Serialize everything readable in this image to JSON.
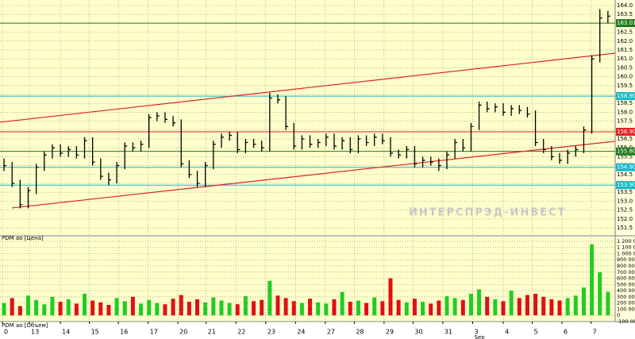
{
  "chart_data": [
    {
      "type": "ohlc",
      "title": "PDM ao [Цена]",
      "xlim": [
        -0.5,
        75.9
      ],
      "ylim": [
        151.1,
        164.31
      ],
      "yticks": [
        {
          "value": 164,
          "label": "164.0"
        },
        {
          "value": 163.5,
          "label": "163.5"
        },
        {
          "value": 163,
          "label": "163.0"
        },
        {
          "value": 162.5,
          "label": "162.5"
        },
        {
          "value": 162,
          "label": "162.0"
        },
        {
          "value": 161.5,
          "label": "161.5"
        },
        {
          "value": 161,
          "label": "161.0"
        },
        {
          "value": 160.5,
          "label": "160.5"
        },
        {
          "value": 160,
          "label": "160.0"
        },
        {
          "value": 159.5,
          "label": "159.5"
        },
        {
          "value": 159,
          "label": "159.0"
        },
        {
          "value": 158.5,
          "label": "158.5"
        },
        {
          "value": 158,
          "label": "158.0"
        },
        {
          "value": 157.5,
          "label": "157.5"
        },
        {
          "value": 157,
          "label": "157.0"
        },
        {
          "value": 156.5,
          "label": "156.5"
        },
        {
          "value": 156,
          "label": "156.0"
        },
        {
          "value": 155.5,
          "label": "155.5"
        },
        {
          "value": 155,
          "label": "155.0"
        },
        {
          "value": 154.5,
          "label": "154.5"
        },
        {
          "value": 154,
          "label": "154.0"
        },
        {
          "value": 153.5,
          "label": "153.5"
        },
        {
          "value": 153,
          "label": "153.0"
        },
        {
          "value": 152.5,
          "label": "152.5"
        },
        {
          "value": 152,
          "label": "152.0"
        },
        {
          "value": 151.5,
          "label": "151.5"
        }
      ],
      "grid": true,
      "color": "#000000",
      "high": [
        155.4,
        155.2,
        154.2,
        153.8,
        155.1,
        155.8,
        156.2,
        156.2,
        156.1,
        156.1,
        156.6,
        156.6,
        155.4,
        154.6,
        155.2,
        156.3,
        156.3,
        156.4,
        157.9,
        158.0,
        158.0,
        157.8,
        157.6,
        155.3,
        154.7,
        155.2,
        156.4,
        156.8,
        156.9,
        156.9,
        156.5,
        156.5,
        156.4,
        159.1,
        159.0,
        158.9,
        157.4,
        156.7,
        156.7,
        156.5,
        156.8,
        156.8,
        156.6,
        156.6,
        156.7,
        156.7,
        156.8,
        156.8,
        156.6,
        155.9,
        156.1,
        156.1,
        155.5,
        155.5,
        155.4,
        155.8,
        156.5,
        156.5,
        157.4,
        158.6,
        158.6,
        158.5,
        158.5,
        158.4,
        158.4,
        158.3,
        158.1,
        156.5,
        156.1,
        155.7,
        155.9,
        156.1,
        157.2,
        161.2,
        163.8,
        163.7
      ],
      "low": [
        154.7,
        153.8,
        152.6,
        152.6,
        153.4,
        154.7,
        155.4,
        155.5,
        155.5,
        155.4,
        155.4,
        155.0,
        154.2,
        153.9,
        154.0,
        154.8,
        155.8,
        155.8,
        156.0,
        157.5,
        157.4,
        157.2,
        154.9,
        154.3,
        153.8,
        153.8,
        154.8,
        156.0,
        156.4,
        155.7,
        155.7,
        156.0,
        155.8,
        155.8,
        158.5,
        157.0,
        155.9,
        155.9,
        156.0,
        156.0,
        156.1,
        155.9,
        155.9,
        155.7,
        155.7,
        156.1,
        156.1,
        156.2,
        155.5,
        155.4,
        155.4,
        154.9,
        154.9,
        155.0,
        154.7,
        154.8,
        155.4,
        155.8,
        155.8,
        157.0,
        158.0,
        158.0,
        157.8,
        157.8,
        157.9,
        157.7,
        156.1,
        155.7,
        155.3,
        155.1,
        155.1,
        155.5,
        155.7,
        156.8,
        160.8,
        163.0
      ],
      "close": [
        155.0,
        154.0,
        152.8,
        153.6,
        154.9,
        155.6,
        156.0,
        155.7,
        155.9,
        155.6,
        156.4,
        155.2,
        154.4,
        154.2,
        155.0,
        156.1,
        156.0,
        156.2,
        157.7,
        157.8,
        157.6,
        157.4,
        155.1,
        154.5,
        154.0,
        155.0,
        156.2,
        156.6,
        156.7,
        155.9,
        156.3,
        156.2,
        156.0,
        158.8,
        158.7,
        157.2,
        156.1,
        156.5,
        156.2,
        156.3,
        156.6,
        156.1,
        156.4,
        155.9,
        156.5,
        156.3,
        156.6,
        156.4,
        155.7,
        155.6,
        155.9,
        155.1,
        155.3,
        155.2,
        155.0,
        155.6,
        156.3,
        156.0,
        157.2,
        158.4,
        158.2,
        158.3,
        158.0,
        158.2,
        158.1,
        157.9,
        156.3,
        155.9,
        155.5,
        155.3,
        155.7,
        155.9,
        157.0,
        161.0,
        163.3,
        163.4
      ],
      "levels": [
        {
          "value": 163.01,
          "label": "163.010",
          "color": "#1f7a1f"
        },
        {
          "value": 158.904,
          "label": "158.904",
          "color": "#18b8c8"
        },
        {
          "value": 156.9,
          "label": "156.900",
          "color": "#e02020"
        },
        {
          "value": 155.8,
          "label": "155.800",
          "color": "#1f7a1f"
        },
        {
          "value": 154.906,
          "label": "154.906",
          "color": "#18b8c8"
        },
        {
          "value": 153.903,
          "label": "153.903",
          "color": "#18b8c8"
        }
      ],
      "trendlines": [
        {
          "x": [
            -0.5,
            75.9
          ],
          "y": [
            157.44,
            161.32
          ],
          "color": "#e02020"
        },
        {
          "x": [
            0.98,
            75.9
          ],
          "y": [
            152.62,
            156.37
          ],
          "color": "#e02020"
        }
      ],
      "watermark": "ИНТЕРСПРЭД-ИНВЕСТ"
    },
    {
      "type": "volume",
      "title": "PDM ao [Объем]",
      "xlim": [
        -0.5,
        75.9
      ],
      "ylim": [
        -100000,
        1250000
      ],
      "yticks": [
        {
          "value": 1200000,
          "label": "1 200 000"
        },
        {
          "value": 1100000,
          "label": "1 100 000"
        },
        {
          "value": 1000000,
          "label": "1 000 000"
        },
        {
          "value": 900000,
          "label": "900 000"
        },
        {
          "value": 800000,
          "label": "800 000"
        },
        {
          "value": 700000,
          "label": "700 000"
        },
        {
          "value": 600000,
          "label": "600 000"
        },
        {
          "value": 500000,
          "label": "500 000"
        },
        {
          "value": 400000,
          "label": "400 000"
        },
        {
          "value": 300000,
          "label": "300 000"
        },
        {
          "value": 200000,
          "label": "200 000"
        },
        {
          "value": 100000,
          "label": "100 000"
        },
        0,
        {
          "value": -100000,
          "label": "-100 000"
        }
      ],
      "grid": true,
      "up_color": "#22cc22",
      "down_color": "#e01010",
      "values": [
        200000,
        280000,
        150000,
        320000,
        250000,
        180000,
        300000,
        220000,
        260000,
        190000,
        350000,
        240000,
        210000,
        170000,
        280000,
        230000,
        300000,
        190000,
        250000,
        200000,
        180000,
        270000,
        330000,
        220000,
        260000,
        210000,
        290000,
        240000,
        200000,
        180000,
        310000,
        230000,
        250000,
        560000,
        320000,
        280000,
        230000,
        200000,
        270000,
        210000,
        190000,
        260000,
        380000,
        220000,
        240000,
        200000,
        290000,
        230000,
        600000,
        250000,
        210000,
        270000,
        220000,
        190000,
        240000,
        310000,
        280000,
        250000,
        350000,
        420000,
        300000,
        260000,
        230000,
        400000,
        280000,
        330000,
        350000,
        300000,
        260000,
        240000,
        280000,
        320000,
        450000,
        1150000,
        700000,
        380000
      ],
      "xticks": [
        {
          "value": -0.2,
          "label": "0"
        },
        {
          "value": 3.15,
          "label": "13"
        },
        {
          "value": 7.0,
          "label": "14"
        },
        {
          "value": 10.6,
          "label": "15"
        },
        {
          "value": 14.2,
          "label": "16"
        },
        {
          "value": 17.9,
          "label": "17"
        },
        {
          "value": 21.6,
          "label": "20"
        },
        {
          "value": 25.1,
          "label": "21"
        },
        {
          "value": 28.8,
          "label": "22"
        },
        {
          "value": 32.5,
          "label": "23"
        },
        {
          "value": 36.2,
          "label": "24"
        },
        {
          "value": 39.9,
          "label": "27"
        },
        {
          "value": 43.5,
          "label": "28"
        },
        {
          "value": 47.2,
          "label": "29"
        },
        {
          "value": 50.8,
          "label": "30"
        },
        {
          "value": 54.5,
          "label": "31"
        },
        {
          "value": 58.2,
          "label": "3"
        },
        {
          "value": 62.0,
          "label": "4"
        },
        {
          "value": 65.6,
          "label": "5"
        },
        {
          "value": 69.3,
          "label": "6"
        },
        {
          "value": 72.9,
          "label": "7"
        }
      ],
      "month_label": {
        "value": 58.2,
        "label": "Sep"
      }
    }
  ]
}
